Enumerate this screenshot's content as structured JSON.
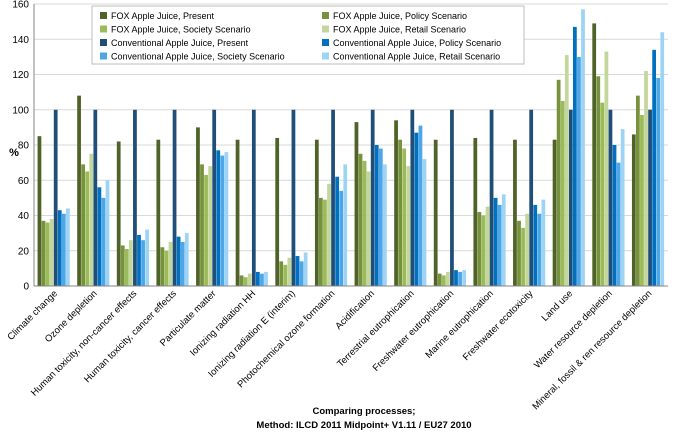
{
  "chart_data": {
    "type": "bar",
    "ylabel": "%",
    "xlabel_line1": "Comparing processes;",
    "xlabel_line2": "Method: ILCD 2011 Midpoint+ V1.11 / EU27 2010",
    "ylim": [
      0,
      160
    ],
    "yticks": [
      0,
      20,
      40,
      60,
      80,
      100,
      120,
      140,
      160
    ],
    "grid": true,
    "legend_position": "top",
    "categories": [
      "Climate change",
      "Ozone depletion",
      "Human toxicity, non-cancer effects",
      "Human toxicity, cancer effects",
      "Particulate matter",
      "Ionizing radiation HH",
      "Ionizing radiation E (interim)",
      "Photochemical ozone formation",
      "Acidification",
      "Terrestrial eutrophication",
      "Freshwater eutrophication",
      "Marine eutrophication",
      "Freshwater ecotoxicity",
      "Land use",
      "Water resource depletion",
      "Mineral, fossil & ren resource depletion"
    ],
    "series": [
      {
        "name": "FOX Apple Juice, Present",
        "color": "#4f6228",
        "values": [
          85,
          108,
          82,
          83,
          90,
          83,
          84,
          83,
          93,
          94,
          83,
          84,
          83,
          83,
          149,
          86
        ]
      },
      {
        "name": "FOX Apple Juice, Policy Scenario",
        "color": "#76923c",
        "values": [
          37,
          69,
          23,
          22,
          69,
          6,
          14,
          50,
          75,
          83,
          7,
          42,
          37,
          117,
          119,
          108
        ]
      },
      {
        "name": "FOX Apple Juice, Society Scenario",
        "color": "#9bbb59",
        "values": [
          36,
          65,
          21,
          20,
          63,
          5,
          12,
          49,
          71,
          78,
          6,
          40,
          33,
          105,
          104,
          97
        ]
      },
      {
        "name": "FOX Apple Juice, Retail Scenario",
        "color": "#c3d69b",
        "values": [
          38,
          75,
          26,
          25,
          68,
          7,
          16,
          58,
          65,
          68,
          8,
          45,
          41,
          131,
          133,
          122
        ]
      },
      {
        "name": "Conventional Apple Juice, Present",
        "color": "#1f4e79",
        "values": [
          100,
          100,
          100,
          100,
          100,
          100,
          100,
          100,
          100,
          100,
          100,
          100,
          100,
          100,
          100,
          100
        ]
      },
      {
        "name": "Conventional Apple Juice, Policy Scenario",
        "color": "#0070c0",
        "values": [
          43,
          56,
          29,
          28,
          77,
          8,
          17,
          62,
          80,
          87,
          9,
          50,
          46,
          147,
          80,
          134
        ]
      },
      {
        "name": "Conventional Apple Juice, Society Scenario",
        "color": "#4da6e8",
        "values": [
          41,
          50,
          26,
          25,
          74,
          7,
          14,
          54,
          78,
          91,
          8,
          46,
          41,
          130,
          70,
          118
        ]
      },
      {
        "name": "Conventional Apple Juice, Retail Scenario",
        "color": "#9dd3f5",
        "values": [
          44,
          60,
          32,
          30,
          76,
          8,
          19,
          69,
          69,
          72,
          9,
          52,
          49,
          157,
          89,
          144
        ]
      }
    ]
  }
}
